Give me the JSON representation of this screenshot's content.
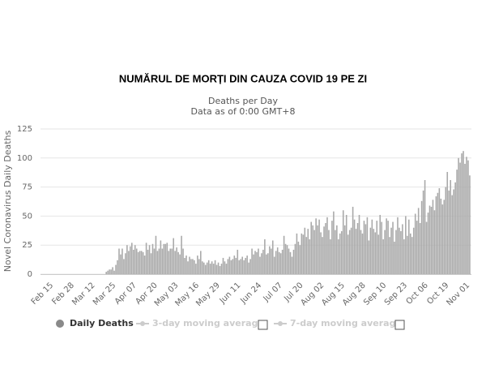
{
  "chart_data": {
    "type": "bar",
    "title": "NUMĂRUL DE MORȚI DIN CAUZA COVID 19 PE ZI",
    "subtitle": "Deaths per Day",
    "subtitle2": "Data as of 0:00 GMT+8",
    "y_label": "Novel Coronavirus Daily Deaths",
    "ylim": [
      0,
      125
    ],
    "yticks": [
      0,
      25,
      50,
      75,
      100,
      125
    ],
    "grid": true,
    "categories": [
      "Feb 15",
      null,
      null,
      null,
      null,
      null,
      null,
      null,
      null,
      null,
      null,
      null,
      null,
      "Feb 28",
      null,
      null,
      null,
      null,
      null,
      null,
      null,
      null,
      null,
      null,
      null,
      null,
      "Mar 12",
      null,
      null,
      null,
      null,
      null,
      null,
      null,
      null,
      null,
      null,
      null,
      null,
      "Mar 25",
      null,
      null,
      null,
      null,
      null,
      null,
      null,
      null,
      null,
      null,
      null,
      null,
      "Apr 07",
      null,
      null,
      null,
      null,
      null,
      null,
      null,
      null,
      null,
      null,
      null,
      null,
      "Apr 20",
      null,
      null,
      null,
      null,
      null,
      null,
      null,
      null,
      null,
      null,
      null,
      null,
      "May 03",
      null,
      null,
      null,
      null,
      null,
      null,
      null,
      null,
      null,
      null,
      null,
      null,
      "May 16",
      null,
      null,
      null,
      null,
      null,
      null,
      null,
      null,
      null,
      null,
      null,
      null,
      "May 29",
      null,
      null,
      null,
      null,
      null,
      null,
      null,
      null,
      null,
      null,
      null,
      null,
      "Jun 11",
      null,
      null,
      null,
      null,
      null,
      null,
      null,
      null,
      null,
      null,
      null,
      null,
      "Jun 24",
      null,
      null,
      null,
      null,
      null,
      null,
      null,
      null,
      null,
      null,
      null,
      null,
      "Jul 07",
      null,
      null,
      null,
      null,
      null,
      null,
      null,
      null,
      null,
      null,
      null,
      null,
      "Jul 20",
      null,
      null,
      null,
      null,
      null,
      null,
      null,
      null,
      null,
      null,
      null,
      null,
      "Aug 02",
      null,
      null,
      null,
      null,
      null,
      null,
      null,
      null,
      null,
      null,
      null,
      null,
      "Aug 15",
      null,
      null,
      null,
      null,
      null,
      null,
      null,
      null,
      null,
      null,
      null,
      null,
      "Aug 28",
      null,
      null,
      null,
      null,
      null,
      null,
      null,
      null,
      null,
      null,
      null,
      null,
      "Sep 10",
      null,
      null,
      null,
      null,
      null,
      null,
      null,
      null,
      null,
      null,
      null,
      null,
      "Sep 23",
      null,
      null,
      null,
      null,
      null,
      null,
      null,
      null,
      null,
      null,
      null,
      null,
      "Oct 06",
      null,
      null,
      null,
      null,
      null,
      null,
      null,
      null,
      null,
      null,
      null,
      null,
      "Oct 19",
      null,
      null,
      null,
      null,
      null,
      null,
      null,
      null,
      null,
      null,
      null,
      null,
      "Nov 01",
      null,
      null,
      null
    ],
    "series": [
      {
        "name": "Daily Deaths",
        "color": "#a9a9a9",
        "values": [
          0,
          0,
          0,
          0,
          0,
          0,
          0,
          0,
          0,
          0,
          0,
          0,
          0,
          0,
          0,
          0,
          0,
          0,
          0,
          0,
          0,
          0,
          0,
          0,
          0,
          0,
          0,
          0,
          0,
          0,
          0,
          0,
          0,
          0,
          0,
          0,
          2,
          3,
          4,
          4,
          6,
          3,
          8,
          12,
          22,
          17,
          22,
          13,
          18,
          25,
          20,
          24,
          27,
          21,
          25,
          22,
          19,
          20,
          20,
          19,
          16,
          27,
          21,
          25,
          18,
          26,
          22,
          33,
          20,
          22,
          29,
          22,
          26,
          26,
          27,
          20,
          22,
          22,
          31,
          20,
          23,
          19,
          17,
          33,
          22,
          14,
          16,
          11,
          15,
          13,
          13,
          12,
          9,
          16,
          13,
          20,
          11,
          10,
          8,
          10,
          12,
          9,
          11,
          9,
          12,
          8,
          10,
          7,
          9,
          14,
          11,
          9,
          13,
          15,
          12,
          13,
          16,
          14,
          21,
          12,
          13,
          15,
          12,
          14,
          16,
          10,
          13,
          22,
          17,
          20,
          19,
          22,
          15,
          18,
          21,
          30,
          17,
          18,
          24,
          22,
          29,
          15,
          20,
          23,
          19,
          18,
          21,
          33,
          26,
          25,
          22,
          19,
          15,
          21,
          26,
          35,
          28,
          25,
          35,
          34,
          40,
          32,
          39,
          30,
          45,
          42,
          38,
          48,
          42,
          47,
          36,
          32,
          41,
          44,
          49,
          38,
          30,
          46,
          54,
          38,
          42,
          30,
          35,
          37,
          55,
          42,
          51,
          34,
          38,
          40,
          58,
          47,
          39,
          44,
          51,
          38,
          35,
          46,
          43,
          49,
          29,
          40,
          47,
          39,
          36,
          46,
          34,
          51,
          45,
          30,
          38,
          48,
          46,
          32,
          40,
          45,
          28,
          38,
          49,
          40,
          37,
          43,
          30,
          50,
          33,
          47,
          35,
          32,
          40,
          52,
          46,
          57,
          44,
          63,
          72,
          81,
          45,
          53,
          59,
          58,
          64,
          55,
          67,
          70,
          74,
          65,
          60,
          64,
          75,
          88,
          72,
          81,
          68,
          73,
          79,
          90,
          100,
          96,
          104,
          106,
          95,
          101,
          98,
          85
        ]
      }
    ],
    "legend_inactive": [
      "3-day moving average",
      "7-day moving average"
    ]
  }
}
